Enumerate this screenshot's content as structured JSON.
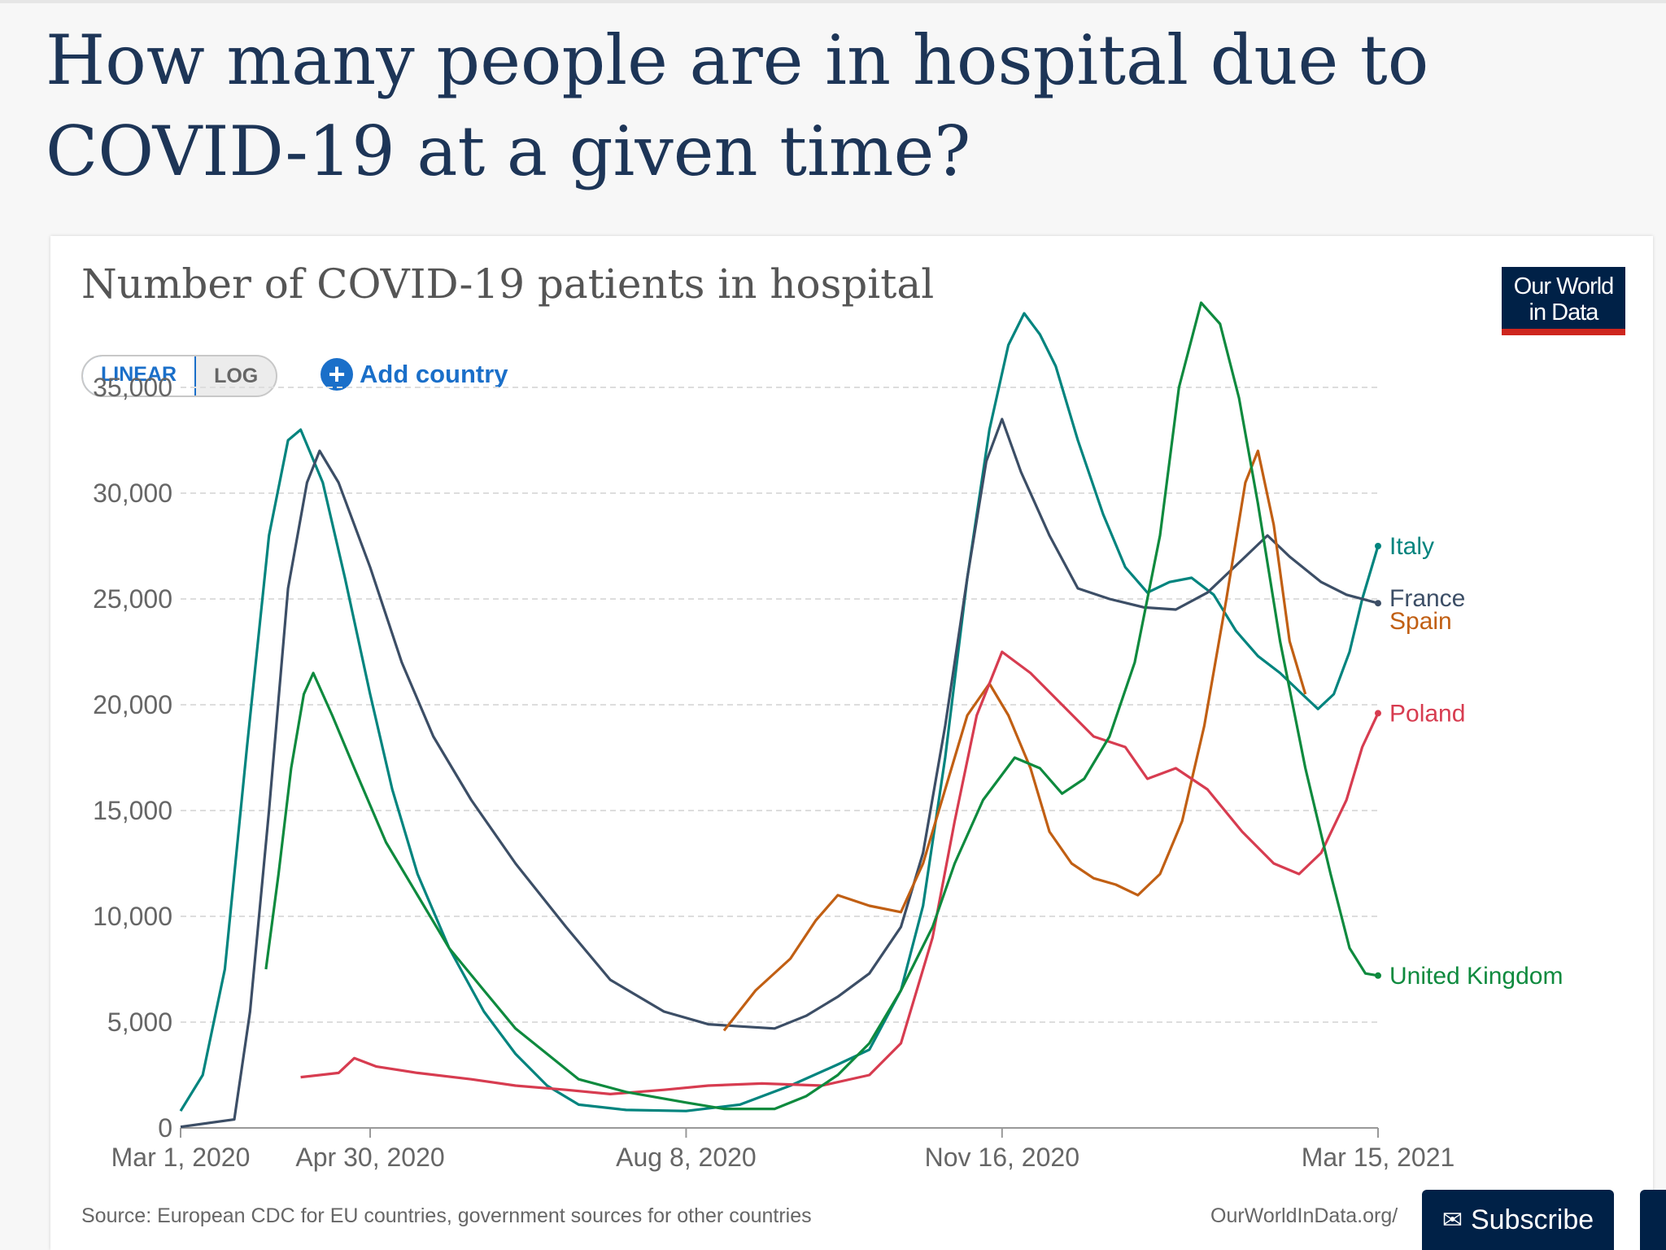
{
  "page": {
    "title": "How many people are in hospital due to COVID-19 at a given time?"
  },
  "chart_header": {
    "title": "Number of COVID-19 patients in hospital",
    "logo_line1": "Our World",
    "logo_line2": "in Data"
  },
  "controls": {
    "linear_label": "LINEAR",
    "log_label": "LOG",
    "add_country_label": "Add country",
    "active_scale": "linear"
  },
  "footer": {
    "source": "Source: European CDC for EU countries, government sources for other countries",
    "url": "OurWorldInData.org/",
    "subscribe_label": "Subscribe"
  },
  "colors": {
    "italy": "#00847e",
    "france": "#3c4e66",
    "spain": "#c15f13",
    "poland": "#d73c50",
    "united_kingdom": "#0e8a3e",
    "grid": "#dddddd",
    "axis_text": "#666666"
  },
  "chart_data": {
    "type": "line",
    "title": "Number of COVID-19 patients in hospital",
    "xlabel": "",
    "ylabel": "",
    "x_range": [
      "2020-03-01",
      "2021-03-15"
    ],
    "x_ticks": [
      {
        "date": "2020-03-01",
        "label": "Mar 1, 2020"
      },
      {
        "date": "2020-04-30",
        "label": "Apr 30, 2020"
      },
      {
        "date": "2020-08-08",
        "label": "Aug 8, 2020"
      },
      {
        "date": "2020-11-16",
        "label": "Nov 16, 2020"
      },
      {
        "date": "2021-03-15",
        "label": "Mar 15, 2021"
      }
    ],
    "ylim": [
      0,
      38000
    ],
    "y_ticks": [
      {
        "value": 0,
        "label": "0"
      },
      {
        "value": 5000,
        "label": "5,000"
      },
      {
        "value": 10000,
        "label": "10,000"
      },
      {
        "value": 15000,
        "label": "15,000"
      },
      {
        "value": 20000,
        "label": "20,000"
      },
      {
        "value": 25000,
        "label": "25,000"
      },
      {
        "value": 30000,
        "label": "30,000"
      },
      {
        "value": 35000,
        "label": "35,000"
      }
    ],
    "grid": true,
    "legend": "inline-right",
    "series": [
      {
        "name": "Italy",
        "color_key": "italy",
        "points": [
          [
            "2020-03-01",
            800
          ],
          [
            "2020-03-08",
            2500
          ],
          [
            "2020-03-15",
            7500
          ],
          [
            "2020-03-22",
            18000
          ],
          [
            "2020-03-29",
            28000
          ],
          [
            "2020-04-04",
            32500
          ],
          [
            "2020-04-08",
            33000
          ],
          [
            "2020-04-15",
            30500
          ],
          [
            "2020-04-22",
            26000
          ],
          [
            "2020-04-30",
            20500
          ],
          [
            "2020-05-07",
            16000
          ],
          [
            "2020-05-15",
            12000
          ],
          [
            "2020-05-25",
            8500
          ],
          [
            "2020-06-05",
            5500
          ],
          [
            "2020-06-15",
            3500
          ],
          [
            "2020-06-25",
            2000
          ],
          [
            "2020-07-05",
            1100
          ],
          [
            "2020-07-20",
            850
          ],
          [
            "2020-08-08",
            800
          ],
          [
            "2020-08-25",
            1100
          ],
          [
            "2020-09-10",
            2000
          ],
          [
            "2020-09-25",
            3000
          ],
          [
            "2020-10-05",
            3700
          ],
          [
            "2020-10-15",
            6500
          ],
          [
            "2020-10-22",
            10500
          ],
          [
            "2020-10-29",
            17500
          ],
          [
            "2020-11-05",
            26000
          ],
          [
            "2020-11-12",
            33000
          ],
          [
            "2020-11-18",
            37000
          ],
          [
            "2020-11-23",
            38500
          ],
          [
            "2020-11-28",
            37500
          ],
          [
            "2020-12-03",
            36000
          ],
          [
            "2020-12-10",
            32500
          ],
          [
            "2020-12-18",
            29000
          ],
          [
            "2020-12-25",
            26500
          ],
          [
            "2021-01-01",
            25300
          ],
          [
            "2021-01-08",
            25800
          ],
          [
            "2021-01-15",
            26000
          ],
          [
            "2021-01-22",
            25200
          ],
          [
            "2021-01-29",
            23500
          ],
          [
            "2021-02-05",
            22300
          ],
          [
            "2021-02-12",
            21500
          ],
          [
            "2021-02-19",
            20500
          ],
          [
            "2021-02-24",
            19800
          ],
          [
            "2021-03-01",
            20500
          ],
          [
            "2021-03-06",
            22500
          ],
          [
            "2021-03-10",
            25000
          ],
          [
            "2021-03-15",
            27500
          ]
        ]
      },
      {
        "name": "France",
        "color_key": "france",
        "points": [
          [
            "2020-03-01",
            50
          ],
          [
            "2020-03-18",
            400
          ],
          [
            "2020-03-23",
            5500
          ],
          [
            "2020-03-29",
            15000
          ],
          [
            "2020-04-04",
            25500
          ],
          [
            "2020-04-10",
            30500
          ],
          [
            "2020-04-14",
            32000
          ],
          [
            "2020-04-20",
            30500
          ],
          [
            "2020-04-30",
            26500
          ],
          [
            "2020-05-10",
            22000
          ],
          [
            "2020-05-20",
            18500
          ],
          [
            "2020-06-01",
            15500
          ],
          [
            "2020-06-15",
            12500
          ],
          [
            "2020-07-01",
            9500
          ],
          [
            "2020-07-15",
            7000
          ],
          [
            "2020-08-01",
            5500
          ],
          [
            "2020-08-15",
            4900
          ],
          [
            "2020-08-25",
            4800
          ],
          [
            "2020-09-05",
            4700
          ],
          [
            "2020-09-15",
            5300
          ],
          [
            "2020-09-25",
            6200
          ],
          [
            "2020-10-05",
            7300
          ],
          [
            "2020-10-15",
            9500
          ],
          [
            "2020-10-22",
            13000
          ],
          [
            "2020-10-29",
            19000
          ],
          [
            "2020-11-05",
            26000
          ],
          [
            "2020-11-11",
            31500
          ],
          [
            "2020-11-16",
            33500
          ],
          [
            "2020-11-22",
            31000
          ],
          [
            "2020-12-01",
            28000
          ],
          [
            "2020-12-10",
            25500
          ],
          [
            "2020-12-20",
            25000
          ],
          [
            "2020-12-31",
            24600
          ],
          [
            "2021-01-10",
            24500
          ],
          [
            "2021-01-20",
            25300
          ],
          [
            "2021-02-01",
            27000
          ],
          [
            "2021-02-08",
            28000
          ],
          [
            "2021-02-15",
            27000
          ],
          [
            "2021-02-25",
            25800
          ],
          [
            "2021-03-05",
            25200
          ],
          [
            "2021-03-15",
            24800
          ]
        ]
      },
      {
        "name": "Spain",
        "color_key": "spain",
        "points": [
          [
            "2020-08-20",
            4600
          ],
          [
            "2020-08-30",
            6500
          ],
          [
            "2020-09-10",
            8000
          ],
          [
            "2020-09-18",
            9800
          ],
          [
            "2020-09-25",
            11000
          ],
          [
            "2020-10-05",
            10500
          ],
          [
            "2020-10-15",
            10200
          ],
          [
            "2020-10-22",
            12500
          ],
          [
            "2020-10-29",
            16000
          ],
          [
            "2020-11-05",
            19500
          ],
          [
            "2020-11-12",
            21000
          ],
          [
            "2020-11-18",
            19500
          ],
          [
            "2020-11-25",
            17000
          ],
          [
            "2020-12-01",
            14000
          ],
          [
            "2020-12-08",
            12500
          ],
          [
            "2020-12-15",
            11800
          ],
          [
            "2020-12-22",
            11500
          ],
          [
            "2020-12-29",
            11000
          ],
          [
            "2021-01-05",
            12000
          ],
          [
            "2021-01-12",
            14500
          ],
          [
            "2021-01-19",
            19000
          ],
          [
            "2021-01-26",
            25000
          ],
          [
            "2021-02-01",
            30500
          ],
          [
            "2021-02-05",
            32000
          ],
          [
            "2021-02-10",
            28500
          ],
          [
            "2021-02-15",
            23000
          ],
          [
            "2021-02-20",
            20500
          ]
        ]
      },
      {
        "name": "Poland",
        "color_key": "poland",
        "points": [
          [
            "2020-04-08",
            2400
          ],
          [
            "2020-04-20",
            2600
          ],
          [
            "2020-04-25",
            3300
          ],
          [
            "2020-05-02",
            2900
          ],
          [
            "2020-05-15",
            2600
          ],
          [
            "2020-06-01",
            2300
          ],
          [
            "2020-06-15",
            2000
          ],
          [
            "2020-07-01",
            1800
          ],
          [
            "2020-07-15",
            1600
          ],
          [
            "2020-08-01",
            1800
          ],
          [
            "2020-08-15",
            2000
          ],
          [
            "2020-09-01",
            2100
          ],
          [
            "2020-09-20",
            2000
          ],
          [
            "2020-10-05",
            2500
          ],
          [
            "2020-10-15",
            4000
          ],
          [
            "2020-10-25",
            9000
          ],
          [
            "2020-11-01",
            14500
          ],
          [
            "2020-11-08",
            19500
          ],
          [
            "2020-11-16",
            22500
          ],
          [
            "2020-11-25",
            21500
          ],
          [
            "2020-12-05",
            20000
          ],
          [
            "2020-12-15",
            18500
          ],
          [
            "2020-12-25",
            18000
          ],
          [
            "2021-01-01",
            16500
          ],
          [
            "2021-01-10",
            17000
          ],
          [
            "2021-01-20",
            16000
          ],
          [
            "2021-01-31",
            14000
          ],
          [
            "2021-02-10",
            12500
          ],
          [
            "2021-02-18",
            12000
          ],
          [
            "2021-02-25",
            13000
          ],
          [
            "2021-03-05",
            15500
          ],
          [
            "2021-03-10",
            18000
          ],
          [
            "2021-03-15",
            19600
          ]
        ]
      },
      {
        "name": "United Kingdom",
        "color_key": "united_kingdom",
        "points": [
          [
            "2020-03-28",
            7500
          ],
          [
            "2020-04-01",
            12000
          ],
          [
            "2020-04-05",
            17000
          ],
          [
            "2020-04-09",
            20500
          ],
          [
            "2020-04-12",
            21500
          ],
          [
            "2020-04-18",
            19500
          ],
          [
            "2020-04-25",
            17000
          ],
          [
            "2020-05-05",
            13500
          ],
          [
            "2020-05-15",
            11000
          ],
          [
            "2020-05-25",
            8500
          ],
          [
            "2020-06-05",
            6500
          ],
          [
            "2020-06-15",
            4700
          ],
          [
            "2020-06-25",
            3500
          ],
          [
            "2020-07-05",
            2300
          ],
          [
            "2020-07-20",
            1700
          ],
          [
            "2020-08-08",
            1200
          ],
          [
            "2020-08-20",
            900
          ],
          [
            "2020-09-05",
            900
          ],
          [
            "2020-09-15",
            1500
          ],
          [
            "2020-09-25",
            2500
          ],
          [
            "2020-10-05",
            4000
          ],
          [
            "2020-10-15",
            6500
          ],
          [
            "2020-10-25",
            9500
          ],
          [
            "2020-11-01",
            12500
          ],
          [
            "2020-11-10",
            15500
          ],
          [
            "2020-11-20",
            17500
          ],
          [
            "2020-11-28",
            17000
          ],
          [
            "2020-12-05",
            15800
          ],
          [
            "2020-12-12",
            16500
          ],
          [
            "2020-12-20",
            18500
          ],
          [
            "2020-12-28",
            22000
          ],
          [
            "2021-01-05",
            28000
          ],
          [
            "2021-01-11",
            35000
          ],
          [
            "2021-01-18",
            39000
          ],
          [
            "2021-01-24",
            38000
          ],
          [
            "2021-01-30",
            34500
          ],
          [
            "2021-02-05",
            29500
          ],
          [
            "2021-02-12",
            23000
          ],
          [
            "2021-02-20",
            17000
          ],
          [
            "2021-02-28",
            12000
          ],
          [
            "2021-03-06",
            8500
          ],
          [
            "2021-03-11",
            7300
          ],
          [
            "2021-03-15",
            7200
          ]
        ]
      }
    ]
  }
}
